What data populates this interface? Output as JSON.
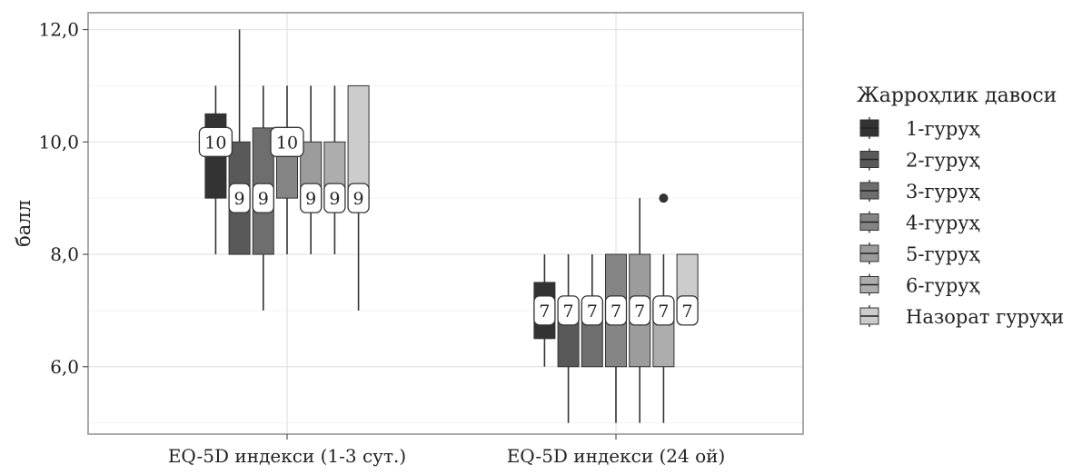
{
  "chart_data": {
    "type": "boxplot",
    "title": "",
    "xlabel": "",
    "ylabel": "балл",
    "ylim": [
      4.8,
      12.3
    ],
    "y_ticks": [
      6.0,
      8.0,
      10.0,
      12.0
    ],
    "y_tick_labels": [
      "6,0",
      "8,0",
      "10,0",
      "12,0"
    ],
    "grid": true,
    "categories": [
      "EQ-5D индекси (1-3 сут.)",
      "EQ-5D индекси (24 ой)"
    ],
    "legend": {
      "title": "Жарроҳлик давоси",
      "position": "right"
    },
    "series": [
      {
        "name": "1-гуруҳ",
        "color": "#333333",
        "boxes": [
          {
            "whisker_low": 8,
            "q1": 9,
            "median": 10,
            "q3": 10.5,
            "whisker_high": 11,
            "label": "10"
          },
          {
            "whisker_low": 6,
            "q1": 6.5,
            "median": 7,
            "q3": 7.5,
            "whisker_high": 8,
            "label": "7"
          }
        ]
      },
      {
        "name": "2-гуруҳ",
        "color": "#595959",
        "boxes": [
          {
            "whisker_low": 8,
            "q1": 8,
            "median": 9,
            "q3": 10,
            "whisker_high": 12,
            "label": "9"
          },
          {
            "whisker_low": 5,
            "q1": 6,
            "median": 7,
            "q3": 7,
            "whisker_high": 8,
            "label": "7"
          }
        ]
      },
      {
        "name": "3-гуруҳ",
        "color": "#6e6e6e",
        "boxes": [
          {
            "whisker_low": 7,
            "q1": 8,
            "median": 9,
            "q3": 10.25,
            "whisker_high": 11,
            "label": "9"
          },
          {
            "whisker_low": 6,
            "q1": 6,
            "median": 7,
            "q3": 7,
            "whisker_high": 8,
            "label": "7"
          }
        ]
      },
      {
        "name": "4-гуруҳ",
        "color": "#858585",
        "boxes": [
          {
            "whisker_low": 8,
            "q1": 9,
            "median": 10,
            "q3": 10,
            "whisker_high": 11,
            "label": "10"
          },
          {
            "whisker_low": 5,
            "q1": 6,
            "median": 7,
            "q3": 8,
            "whisker_high": 8,
            "label": "7"
          }
        ]
      },
      {
        "name": "5-гуруҳ",
        "color": "#9c9c9c",
        "boxes": [
          {
            "whisker_low": 8,
            "q1": 9,
            "median": 9,
            "q3": 10,
            "whisker_high": 11,
            "label": "9"
          },
          {
            "whisker_low": 5,
            "q1": 6,
            "median": 7,
            "q3": 8,
            "whisker_high": 9,
            "label": "7"
          }
        ]
      },
      {
        "name": "6-гуруҳ",
        "color": "#adadad",
        "boxes": [
          {
            "whisker_low": 8,
            "q1": 9,
            "median": 9,
            "q3": 10,
            "whisker_high": 11,
            "label": "9"
          },
          {
            "whisker_low": 5,
            "q1": 6,
            "median": 7,
            "q3": 7,
            "whisker_high": 8,
            "label": "7",
            "outliers": [
              9
            ]
          }
        ]
      },
      {
        "name": "Назорат гуруҳи",
        "color": "#cccccc",
        "boxes": [
          {
            "whisker_low": 7,
            "q1": 9,
            "median": 9,
            "q3": 11,
            "whisker_high": 11,
            "label": "9"
          },
          {
            "whisker_low": 7,
            "q1": 7,
            "median": 7,
            "q3": 8,
            "whisker_high": 8,
            "label": "7"
          }
        ]
      }
    ]
  }
}
